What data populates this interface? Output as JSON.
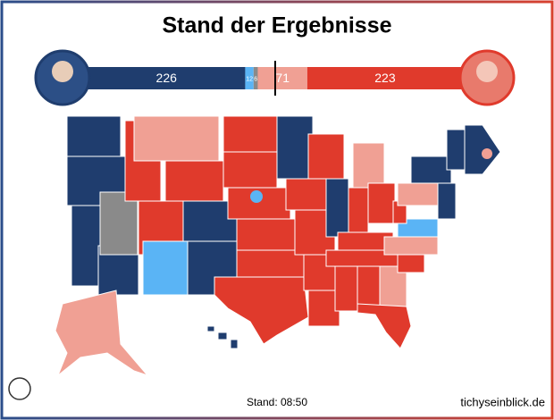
{
  "title": "Stand der Ergebnisse",
  "bar": {
    "segments": [
      {
        "value": 226,
        "color": "#1f3d6e"
      },
      {
        "value": 12,
        "color": "#5ab4f5"
      },
      {
        "value": 6,
        "color": "#8a8a8a"
      },
      {
        "value": 71,
        "color": "#f0a094"
      },
      {
        "value": 223,
        "color": "#e03a2c"
      }
    ]
  },
  "footer": {
    "time": "Stand: 08:50",
    "source": "tichyseinblick.de"
  }
}
